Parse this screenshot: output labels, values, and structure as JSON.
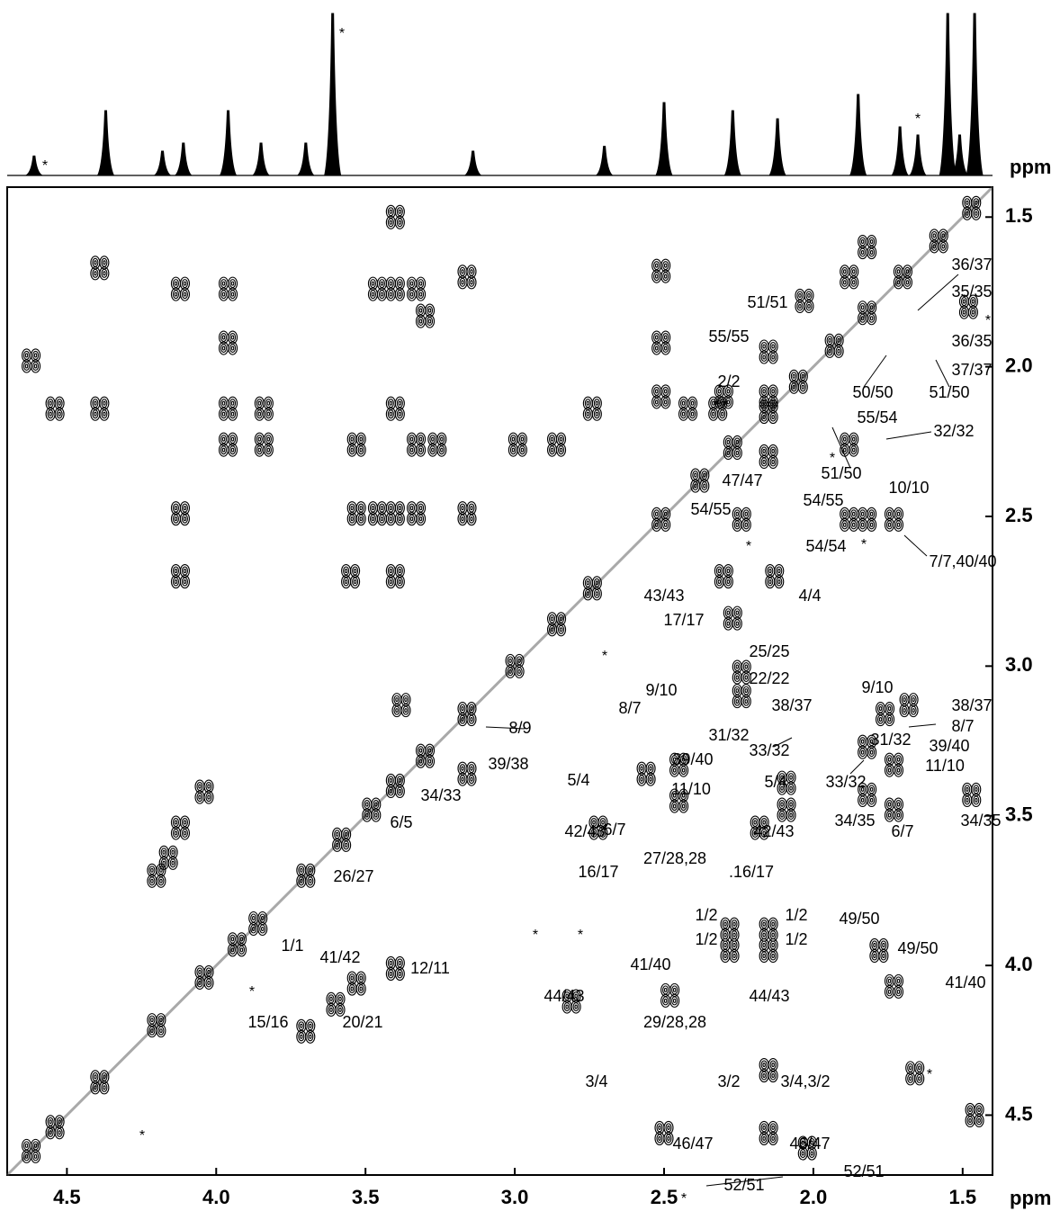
{
  "chart_data": {
    "type": "nmr2d",
    "xlabel": "ppm",
    "spectrum_label": "ppm",
    "xlim": [
      4.7,
      1.4
    ],
    "ylim": [
      1.4,
      4.7
    ],
    "xticks": [
      4.5,
      {
        "value": 4,
        "label": "4.0"
      },
      3.5,
      {
        "value": 3,
        "label": "3.0"
      },
      2.5,
      {
        "value": 2,
        "label": "2.0"
      },
      1.5
    ],
    "yticks": [
      1.5,
      {
        "value": 2,
        "label": "2.0"
      },
      2.5,
      {
        "value": 3,
        "label": "3.0"
      },
      3.5,
      {
        "value": 4,
        "label": "4.0"
      },
      4.5
    ],
    "color": "#000000",
    "spectrum": {
      "x": [
        4.61,
        4.37,
        4.18,
        4.11,
        3.96,
        3.85,
        3.7,
        3.61,
        3.14,
        2.7,
        2.5,
        2.27,
        2.12,
        1.85,
        1.71,
        1.65,
        1.55,
        1.51,
        1.46
      ],
      "values": [
        12,
        40,
        15,
        20,
        40,
        20,
        20,
        100,
        15,
        18,
        45,
        40,
        35,
        50,
        30,
        25,
        100,
        25,
        100
      ]
    },
    "cross_peaks": {
      "x": [
        4.54,
        4.39,
        4.39,
        4.12,
        3.96,
        3.96,
        4.12,
        3.46,
        3.4,
        3.33,
        3.16,
        3.3,
        3.4,
        3.96,
        3.84,
        3.53,
        3.96,
        3.84,
        3.33,
        3.26,
        3.53,
        3.46,
        3.4,
        3.33,
        3.16,
        3.55,
        3.4,
        4.12,
        2.74,
        2.99,
        2.86,
        3.4,
        4.62,
        4.62,
        4.54,
        4.39,
        4.2,
        4.04,
        3.93,
        3.86,
        3.7,
        3.58,
        3.48,
        3.4,
        3.3,
        3.16,
        3.0,
        2.86,
        2.74,
        2.51,
        2.38,
        2.27,
        2.15,
        2.05,
        1.93,
        1.82,
        1.7,
        1.58,
        1.47,
        4.12,
        4.04,
        4.2,
        4.16,
        3.16,
        3.38,
        3.4,
        3.53,
        3.7,
        3.6,
        2.51,
        2.51,
        2.51,
        2.3,
        2.15,
        2.15,
        1.82,
        1.88,
        2.03,
        2.15,
        2.32,
        2.42,
        1.88,
        1.82,
        1.73,
        1.88,
        2.24,
        2.3,
        2.13,
        2.27,
        2.24,
        2.24,
        1.68,
        1.76,
        1.82,
        1.73,
        1.82,
        1.73,
        2.09,
        2.09,
        2.56,
        2.45,
        2.45,
        2.72,
        2.18,
        1.47,
        2.28,
        2.15,
        2.28,
        2.15,
        1.78,
        1.73,
        2.48,
        2.81,
        2.15,
        1.66,
        2.5,
        2.15,
        2.02,
        1.46,
        1.48
      ],
      "y": [
        2.14,
        2.14,
        1.67,
        1.74,
        1.74,
        1.92,
        2.49,
        1.74,
        1.74,
        1.74,
        1.7,
        1.83,
        2.14,
        2.14,
        2.14,
        2.26,
        2.26,
        2.26,
        2.26,
        2.26,
        2.49,
        2.49,
        2.49,
        2.49,
        2.49,
        2.7,
        2.7,
        2.7,
        2.14,
        2.26,
        2.26,
        1.5,
        1.98,
        4.62,
        4.54,
        4.39,
        4.2,
        4.04,
        3.93,
        3.86,
        3.7,
        3.58,
        3.48,
        3.4,
        3.3,
        3.16,
        3.0,
        2.86,
        2.74,
        2.51,
        2.38,
        2.27,
        2.15,
        2.05,
        1.93,
        1.82,
        1.7,
        1.58,
        1.47,
        3.54,
        3.42,
        3.7,
        3.64,
        3.36,
        3.13,
        4.01,
        4.06,
        4.22,
        4.13,
        1.68,
        1.92,
        2.1,
        2.1,
        2.1,
        2.3,
        1.6,
        1.7,
        1.78,
        1.95,
        2.14,
        2.14,
        2.26,
        2.51,
        2.51,
        2.51,
        2.51,
        2.7,
        2.7,
        2.84,
        3.02,
        3.1,
        3.13,
        3.16,
        3.27,
        3.33,
        3.43,
        3.48,
        3.39,
        3.48,
        3.36,
        3.33,
        3.45,
        3.54,
        3.54,
        3.43,
        3.88,
        3.88,
        3.95,
        3.95,
        3.95,
        4.07,
        4.1,
        4.12,
        4.35,
        4.36,
        4.56,
        4.56,
        4.61,
        4.5,
        1.8
      ]
    },
    "annotations": [
      "51/51",
      "55/55",
      "2/2",
      "36/37",
      "35/35",
      "36/35",
      "50/50",
      "51/50",
      "37/37",
      "55/54",
      "32/32",
      "47/47",
      "51/50",
      "10/10",
      "54/55",
      "54/55",
      "54/54",
      "7/7,40/40",
      "43/43",
      "4/4",
      "17/17",
      "25/25",
      "22/22",
      "9/10",
      "8/7",
      "9/10",
      "38/37",
      "38/37",
      "8/9",
      "8/7",
      "31/32",
      "31/32",
      "39/40",
      "33/32",
      "39/38",
      "39/40",
      "11/10",
      "5/4",
      "5/4",
      "11/10",
      "33/32",
      "34/33",
      "34/35",
      "34/35",
      "6/5",
      "6/7",
      "42/43",
      "42/43",
      "6/7",
      "27/28,28",
      "26/27",
      "16/17",
      ".16/17",
      "1/2",
      "1/2",
      "49/50",
      "1/2",
      "1/2",
      "1/1",
      "49/50",
      "41/42",
      "12/11",
      "41/40",
      "41/40",
      "44/43",
      "44/43",
      "15/16",
      "20/21",
      "29/28,28",
      "3/4",
      "3/2",
      "3/4,3/2",
      "46/47",
      "46/47",
      "52/51",
      "52/51",
      "*",
      "*",
      "*",
      "*",
      "*",
      "*",
      "*",
      "*",
      "*",
      "*",
      "*",
      "*",
      "*",
      "*"
    ]
  }
}
